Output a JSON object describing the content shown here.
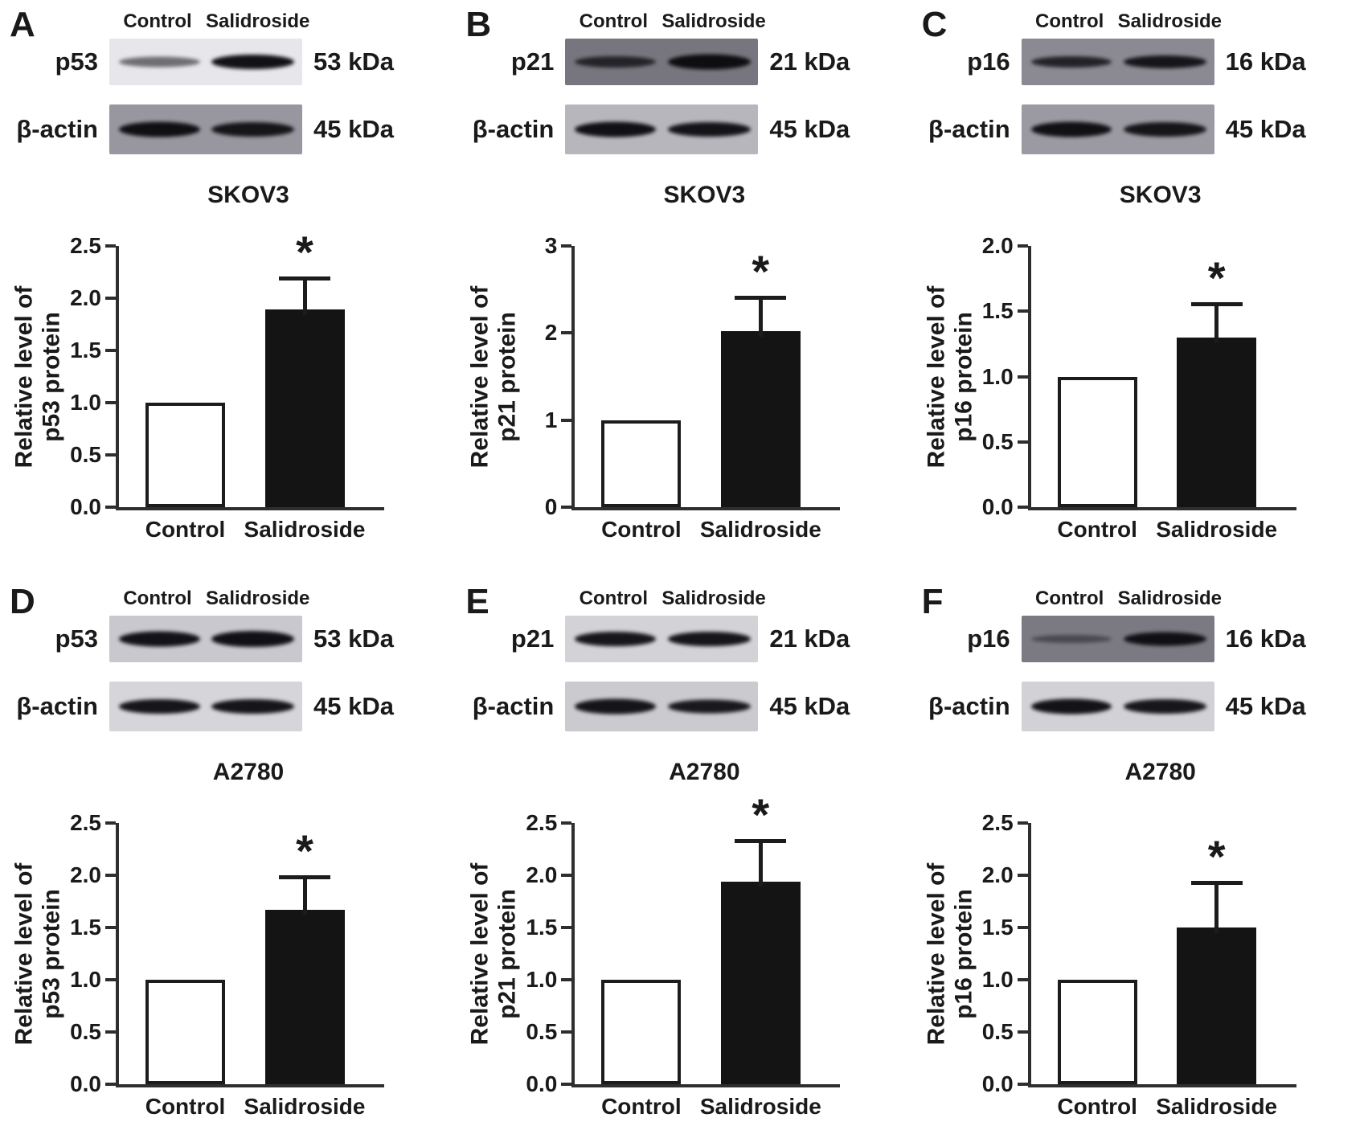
{
  "figure": {
    "panels": [
      {
        "letter": "A",
        "cell_line": "SKOV3",
        "lane_labels": [
          "Control",
          "Salidroside"
        ],
        "blots": [
          {
            "label": "p53",
            "kda": "53 kDa",
            "bg": "#e7e6ea",
            "bands": [
              {
                "o": 0.55,
                "h": 13
              },
              {
                "o": 0.97,
                "h": 18
              }
            ]
          },
          {
            "label": "β-actin",
            "kda": "45 kDa",
            "bg": "#98979f",
            "bands": [
              {
                "o": 0.97,
                "h": 19
              },
              {
                "o": 0.93,
                "h": 18
              }
            ]
          }
        ]
      },
      {
        "letter": "B",
        "cell_line": "SKOV3",
        "lane_labels": [
          "Control",
          "Salidroside"
        ],
        "blots": [
          {
            "label": "p21",
            "kda": "21 kDa",
            "bg": "#77767e",
            "bands": [
              {
                "o": 0.78,
                "h": 14
              },
              {
                "o": 0.98,
                "h": 19
              }
            ]
          },
          {
            "label": "β-actin",
            "kda": "45 kDa",
            "bg": "#b7b6bd",
            "bands": [
              {
                "o": 0.97,
                "h": 19
              },
              {
                "o": 0.95,
                "h": 18
              }
            ]
          }
        ]
      },
      {
        "letter": "C",
        "cell_line": "SKOV3",
        "lane_labels": [
          "Control",
          "Salidroside"
        ],
        "blots": [
          {
            "label": "p16",
            "kda": "16 kDa",
            "bg": "#8b8a93",
            "bands": [
              {
                "o": 0.82,
                "h": 14
              },
              {
                "o": 0.92,
                "h": 16
              }
            ]
          },
          {
            "label": "β-actin",
            "kda": "45 kDa",
            "bg": "#9b9aa2",
            "bands": [
              {
                "o": 0.96,
                "h": 19
              },
              {
                "o": 0.93,
                "h": 18
              }
            ]
          }
        ]
      },
      {
        "letter": "D",
        "cell_line": "A2780",
        "lane_labels": [
          "Control",
          "Salidroside"
        ],
        "blots": [
          {
            "label": "p53",
            "kda": "53 kDa",
            "bg": "#c9c8ce",
            "bands": [
              {
                "o": 0.96,
                "h": 19
              },
              {
                "o": 0.97,
                "h": 20
              }
            ]
          },
          {
            "label": "β-actin",
            "kda": "45 kDa",
            "bg": "#d6d5da",
            "bands": [
              {
                "o": 0.95,
                "h": 18
              },
              {
                "o": 0.95,
                "h": 18
              }
            ]
          }
        ]
      },
      {
        "letter": "E",
        "cell_line": "A2780",
        "lane_labels": [
          "Control",
          "Salidroside"
        ],
        "blots": [
          {
            "label": "p21",
            "kda": "21 kDa",
            "bg": "#d3d2d7",
            "bands": [
              {
                "o": 0.94,
                "h": 18
              },
              {
                "o": 0.95,
                "h": 18
              }
            ]
          },
          {
            "label": "β-actin",
            "kda": "45 kDa",
            "bg": "#cbcacf",
            "bands": [
              {
                "o": 0.95,
                "h": 19
              },
              {
                "o": 0.93,
                "h": 17
              }
            ]
          }
        ]
      },
      {
        "letter": "F",
        "cell_line": "A2780",
        "lane_labels": [
          "Control",
          "Salidroside"
        ],
        "blots": [
          {
            "label": "p16",
            "kda": "16 kDa",
            "bg": "#7b7a83",
            "bands": [
              {
                "o": 0.45,
                "h": 10
              },
              {
                "o": 0.96,
                "h": 17
              }
            ]
          },
          {
            "label": "β-actin",
            "kda": "45 kDa",
            "bg": "#d2d1d6",
            "bands": [
              {
                "o": 0.96,
                "h": 19
              },
              {
                "o": 0.94,
                "h": 18
              }
            ]
          }
        ]
      }
    ]
  },
  "chart_data": [
    {
      "type": "bar",
      "title": "SKOV3",
      "ylabel": "Relative level of p53 protein",
      "ylabel_lines": [
        "Relative level of",
        "p53 protein"
      ],
      "categories": [
        "Control",
        "Salidroside"
      ],
      "values": [
        1.0,
        1.89
      ],
      "error_up": [
        0,
        0.32
      ],
      "sig_labels": [
        "",
        "*"
      ],
      "ylim": [
        0,
        2.5
      ],
      "ytick_labels": [
        "0.0",
        "0.5",
        "1.0",
        "1.5",
        "2.0",
        "2.5"
      ]
    },
    {
      "type": "bar",
      "title": "SKOV3",
      "ylabel": "Relative level of p21 protein",
      "ylabel_lines": [
        "Relative level of",
        "p21 protein"
      ],
      "categories": [
        "Control",
        "Salidroside"
      ],
      "values": [
        1.0,
        2.02
      ],
      "error_up": [
        0,
        0.41
      ],
      "sig_labels": [
        "",
        "*"
      ],
      "ylim": [
        0,
        3
      ],
      "ytick_labels": [
        "0",
        "1",
        "2",
        "3"
      ]
    },
    {
      "type": "bar",
      "title": "SKOV3",
      "ylabel": "Relative level of p16 protein",
      "ylabel_lines": [
        "Relative level of",
        "p16 protein"
      ],
      "categories": [
        "Control",
        "Salidroside"
      ],
      "values": [
        1.0,
        1.3
      ],
      "error_up": [
        0,
        0.27
      ],
      "sig_labels": [
        "",
        "*"
      ],
      "ylim": [
        0,
        2
      ],
      "ytick_labels": [
        "0.0",
        "0.5",
        "1.0",
        "1.5",
        "2.0"
      ]
    },
    {
      "type": "bar",
      "title": "A2780",
      "ylabel": "Relative level of p53 protein",
      "ylabel_lines": [
        "Relative level of",
        "p53 protein"
      ],
      "categories": [
        "Control",
        "Salidroside"
      ],
      "values": [
        1.0,
        1.67
      ],
      "error_up": [
        0,
        0.33
      ],
      "sig_labels": [
        "",
        "*"
      ],
      "ylim": [
        0,
        2.5
      ],
      "ytick_labels": [
        "0.0",
        "0.5",
        "1.0",
        "1.5",
        "2.0",
        "2.5"
      ]
    },
    {
      "type": "bar",
      "title": "A2780",
      "ylabel": "Relative level of p21 protein",
      "ylabel_lines": [
        "Relative level of",
        "p21 protein"
      ],
      "categories": [
        "Control",
        "Salidroside"
      ],
      "values": [
        1.0,
        1.94
      ],
      "error_up": [
        0,
        0.41
      ],
      "sig_labels": [
        "",
        "*"
      ],
      "ylim": [
        0,
        2.5
      ],
      "ytick_labels": [
        "0.0",
        "0.5",
        "1.0",
        "1.5",
        "2.0",
        "2.5"
      ]
    },
    {
      "type": "bar",
      "title": "A2780",
      "ylabel": "Relative level of p16 protein",
      "ylabel_lines": [
        "Relative level of",
        "p16 protein"
      ],
      "categories": [
        "Control",
        "Salidroside"
      ],
      "values": [
        1.0,
        1.5
      ],
      "error_up": [
        0,
        0.45
      ],
      "sig_labels": [
        "",
        "*"
      ],
      "ylim": [
        0,
        2.5
      ],
      "ytick_labels": [
        "0.0",
        "0.5",
        "1.0",
        "1.5",
        "2.0",
        "2.5"
      ]
    }
  ],
  "colors": {
    "bar_fill": "#141414",
    "bar_outline": "#1c1c1c",
    "axis": "#2e2e2e",
    "text": "#1a1a1a"
  }
}
